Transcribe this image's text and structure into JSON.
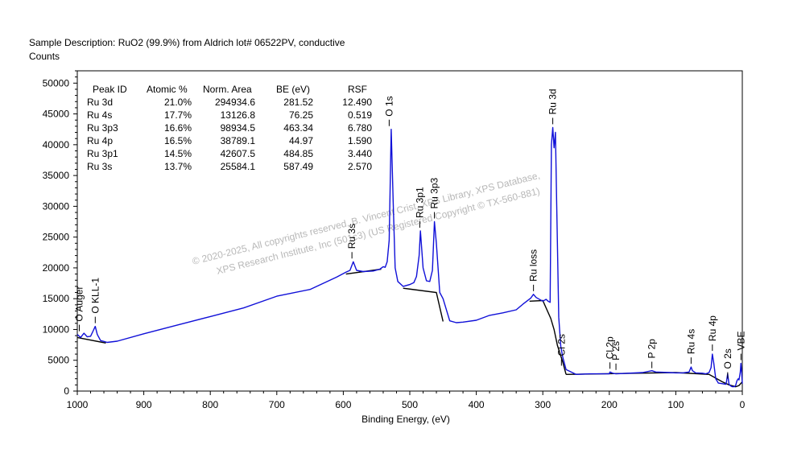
{
  "header": {
    "sample_description": "Sample Description:  RuO2 (99.9%) from Aldrich lot# 06522PV, conductive",
    "counts_label": "Counts"
  },
  "watermark": {
    "line1": "©  2020-2025,  All copyrights reserved,   B. Vincent Crist,  XPS Library, XPS Database,",
    "line2": "XPS Research Institute, Inc (501c3)  (US Registered Copyright © TX-560-881)"
  },
  "chart_data": {
    "type": "line",
    "title": "",
    "xlabel": "Binding Energy, (eV)",
    "ylabel": "Counts",
    "xlim": [
      1000,
      0
    ],
    "ylim": [
      0,
      52000
    ],
    "x_ticks": [
      1000,
      900,
      800,
      700,
      600,
      500,
      400,
      300,
      200,
      100,
      0
    ],
    "y_ticks": [
      0,
      5000,
      10000,
      15000,
      20000,
      25000,
      30000,
      35000,
      40000,
      45000,
      50000
    ],
    "grid": false,
    "colors": {
      "spectrum": "#1010d8",
      "background": "#000000",
      "axis": "#000000"
    },
    "spectrum": {
      "name": "Survey spectrum",
      "x": [
        1000,
        995,
        990,
        985,
        980,
        976,
        973,
        970,
        965,
        955,
        940,
        900,
        850,
        800,
        750,
        700,
        650,
        610,
        596,
        590,
        585,
        580,
        570,
        555,
        545,
        540,
        537,
        534,
        531,
        528,
        525,
        522,
        518,
        510,
        500,
        494,
        490,
        486,
        484,
        480,
        475,
        470,
        466,
        463,
        460,
        455,
        450,
        440,
        430,
        420,
        400,
        380,
        360,
        340,
        330,
        318,
        314,
        310,
        300,
        295,
        292,
        289,
        287,
        285,
        283,
        281,
        279,
        276,
        273,
        270,
        265,
        250,
        230,
        200,
        199,
        195,
        190,
        150,
        136,
        130,
        110,
        100,
        90,
        80,
        77,
        75,
        70,
        60,
        55,
        50,
        47,
        45,
        43,
        40,
        36,
        30,
        25,
        24,
        22,
        20,
        17,
        15,
        12,
        10,
        8,
        6,
        5,
        3,
        2,
        1,
        0
      ],
      "y": [
        9200,
        8700,
        9400,
        8800,
        8900,
        9800,
        10500,
        9200,
        8200,
        7900,
        8100,
        9300,
        10700,
        12100,
        13500,
        15400,
        16500,
        18500,
        19300,
        19600,
        21000,
        19600,
        19400,
        19500,
        19800,
        20200,
        20100,
        21000,
        24500,
        42500,
        31000,
        20000,
        17800,
        17000,
        17300,
        17600,
        18600,
        22000,
        26000,
        20000,
        17900,
        17800,
        19600,
        27500,
        24000,
        16000,
        15000,
        11400,
        11100,
        11200,
        11500,
        12300,
        12700,
        13200,
        14100,
        15100,
        15700,
        15200,
        14600,
        14900,
        14600,
        14400,
        40000,
        42800,
        39500,
        42000,
        30000,
        12000,
        7300,
        5500,
        3500,
        2700,
        2800,
        2800,
        3100,
        2900,
        2800,
        3000,
        3300,
        3100,
        3000,
        2950,
        2950,
        3100,
        3900,
        3300,
        2950,
        2900,
        2800,
        3000,
        3800,
        6000,
        4600,
        2000,
        1300,
        1200,
        1100,
        1400,
        2800,
        1100,
        800,
        700,
        700,
        900,
        1700,
        2000,
        1800,
        3100,
        4500,
        3000,
        1200
      ]
    },
    "background_segments": [
      {
        "x": [
          1000,
          957
        ],
        "y": [
          8700,
          7800
        ]
      },
      {
        "x": [
          596,
          543
        ],
        "y": [
          19000,
          19800
        ]
      },
      {
        "x": [
          510,
          460,
          450
        ],
        "y": [
          16700,
          16000,
          11300
        ]
      },
      {
        "x": [
          320,
          300,
          288,
          283,
          278,
          270,
          265
        ],
        "y": [
          14600,
          14700,
          11800,
          10000,
          7400,
          4700,
          2700
        ]
      },
      {
        "x": [
          265,
          100
        ],
        "y": [
          2700,
          3000
        ]
      },
      {
        "x": [
          100,
          50,
          30,
          20,
          10,
          5,
          0
        ],
        "y": [
          3000,
          2700,
          1500,
          1000,
          700,
          900,
          1500
        ]
      }
    ],
    "peak_labels": [
      {
        "label": "O Auger",
        "x": 997,
        "y": 9200
      },
      {
        "label": "O KLL-1",
        "x": 973,
        "y": 10500
      },
      {
        "label": "Ru 3s",
        "x": 587,
        "y": 21000
      },
      {
        "label": "O 1s",
        "x": 531,
        "y": 42500
      },
      {
        "label": "Ru 3p1",
        "x": 485,
        "y": 26000
      },
      {
        "label": "Ru 3p3",
        "x": 463,
        "y": 27500
      },
      {
        "label": "Ru loss",
        "x": 314,
        "y": 15700
      },
      {
        "label": "Ru 3d",
        "x": 285,
        "y": 42800
      },
      {
        "label": "Cl 2s",
        "x": 272,
        "y": 3600
      },
      {
        "label": "Cl 2p",
        "x": 199,
        "y": 3100
      },
      {
        "label": "P 2s",
        "x": 190,
        "y": 2900
      },
      {
        "label": "P 2p",
        "x": 136,
        "y": 3200
      },
      {
        "label": "Ru 4s",
        "x": 77,
        "y": 3900
      },
      {
        "label": "Ru 4p",
        "x": 45,
        "y": 6000
      },
      {
        "label": "O 2s",
        "x": 22,
        "y": 1500
      },
      {
        "label": "VBE",
        "x": 2,
        "y": 4500
      }
    ],
    "quant_table": {
      "columns": [
        "Peak ID",
        "Atomic %",
        "Norm. Area",
        "BE (eV)",
        "RSF"
      ],
      "rows": [
        [
          "Ru 3d",
          "21.0%",
          "294934.6",
          "281.52",
          "12.490"
        ],
        [
          "Ru 4s",
          "17.7%",
          "13126.8",
          "76.25",
          "0.519"
        ],
        [
          "Ru 3p3",
          "16.6%",
          "98934.5",
          "463.34",
          "6.780"
        ],
        [
          "Ru 4p",
          "16.5%",
          "38789.1",
          "44.97",
          "1.590"
        ],
        [
          "Ru 3p1",
          "14.5%",
          "42607.5",
          "484.85",
          "3.440"
        ],
        [
          "Ru 3s",
          "13.7%",
          "25584.1",
          "587.49",
          "2.570"
        ]
      ]
    }
  }
}
